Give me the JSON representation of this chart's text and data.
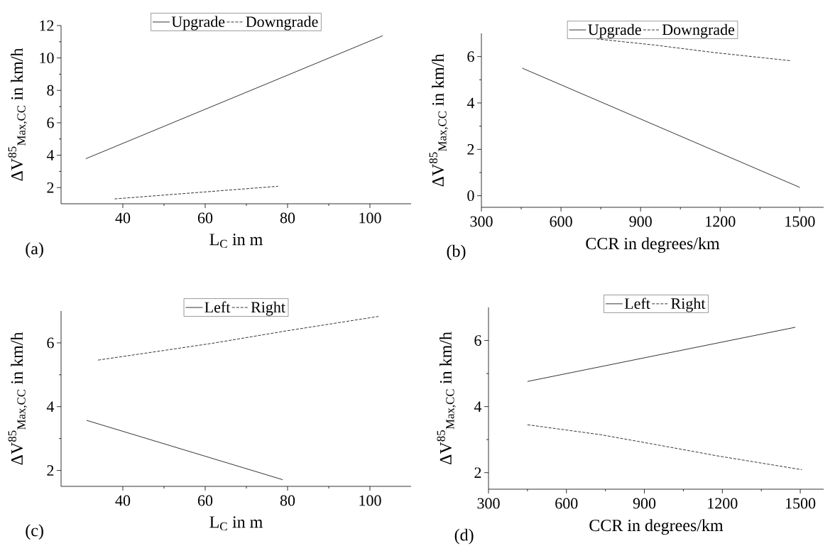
{
  "chart_data": [
    {
      "type": "line",
      "xlabel": "L$_{C}$ in m",
      "ylabel": "ΔV$^{85}$$_{Max,CC}$ in km/h",
      "annotations": [
        "(a)"
      ],
      "xlim": [
        25,
        110
      ],
      "ylim": [
        1,
        12
      ],
      "xticks": [
        40,
        60,
        80,
        100
      ],
      "yticks": [
        2,
        4,
        6,
        8,
        10,
        12
      ],
      "legend": "top",
      "grid": false,
      "marker": "none",
      "series": [
        {
          "name": "Upgrade",
          "color": "#000000",
          "line_style": "solid",
          "x": [
            31,
            103.1
          ],
          "values": [
            3.78,
            11.37
          ]
        },
        {
          "name": "Downgrade",
          "color": "#000000",
          "line_style": "dashed",
          "x": [
            38,
            77.7
          ],
          "values": [
            1.3,
            2.08
          ]
        }
      ]
    },
    {
      "type": "line",
      "xlabel": "CCR in degrees/km",
      "ylabel": "ΔV$^{85}$$_{Max,CC}$ in km/h",
      "annotations": [
        "(b)"
      ],
      "xlim": [
        300,
        1590
      ],
      "ylim": [
        -0.5,
        7
      ],
      "xticks": [
        300,
        600,
        900,
        1200,
        1500
      ],
      "yticks": [
        0,
        2,
        4,
        6
      ],
      "legend": "top",
      "grid": false,
      "marker": "none",
      "series": [
        {
          "name": "Upgrade",
          "color": "#000000",
          "line_style": "solid",
          "x": [
            454,
            1500
          ],
          "values": [
            5.5,
            0.36
          ]
        },
        {
          "name": "Downgrade",
          "color": "#000000",
          "line_style": "dashed",
          "x": [
            734,
            950,
            1180,
            1466
          ],
          "values": [
            6.76,
            6.5,
            6.17,
            5.82
          ]
        }
      ]
    },
    {
      "type": "line",
      "xlabel": "L$_{C}$ in m",
      "ylabel": "ΔV$^{85}$$_{Max,CC}$ in km/h",
      "annotations": [
        "(c)"
      ],
      "xlim": [
        25,
        110
      ],
      "ylim": [
        1.5,
        7
      ],
      "xticks": [
        40,
        60,
        80,
        100
      ],
      "yticks": [
        2,
        4,
        6
      ],
      "legend": "top",
      "grid": false,
      "marker": "none",
      "series": [
        {
          "name": "Left",
          "color": "#000000",
          "line_style": "solid",
          "x": [
            31.2,
            78.8
          ],
          "values": [
            3.57,
            1.71
          ]
        },
        {
          "name": "Right",
          "color": "#000000",
          "line_style": "dashed",
          "x": [
            34,
            50.4,
            61.9,
            79.9,
            102.1
          ],
          "values": [
            5.46,
            5.77,
            5.99,
            6.38,
            6.83
          ]
        }
      ]
    },
    {
      "type": "line",
      "xlabel": "CCR in degrees/km",
      "ylabel": "ΔV$^{85}$$_{Max,CC}$ in km/h",
      "annotations": [
        "(d)"
      ],
      "xlim": [
        300,
        1590
      ],
      "ylim": [
        1.5,
        7
      ],
      "xticks": [
        300,
        600,
        900,
        1200,
        1500
      ],
      "yticks": [
        2,
        4,
        6
      ],
      "legend": "top",
      "grid": false,
      "marker": "none",
      "series": [
        {
          "name": "Left",
          "color": "#000000",
          "line_style": "solid",
          "x": [
            450,
            1481
          ],
          "values": [
            4.76,
            6.4
          ]
        },
        {
          "name": "Right",
          "color": "#000000",
          "line_style": "dashed",
          "x": [
            450,
            731,
            930,
            1180,
            1506
          ],
          "values": [
            3.45,
            3.15,
            2.87,
            2.51,
            2.09
          ]
        }
      ]
    }
  ]
}
